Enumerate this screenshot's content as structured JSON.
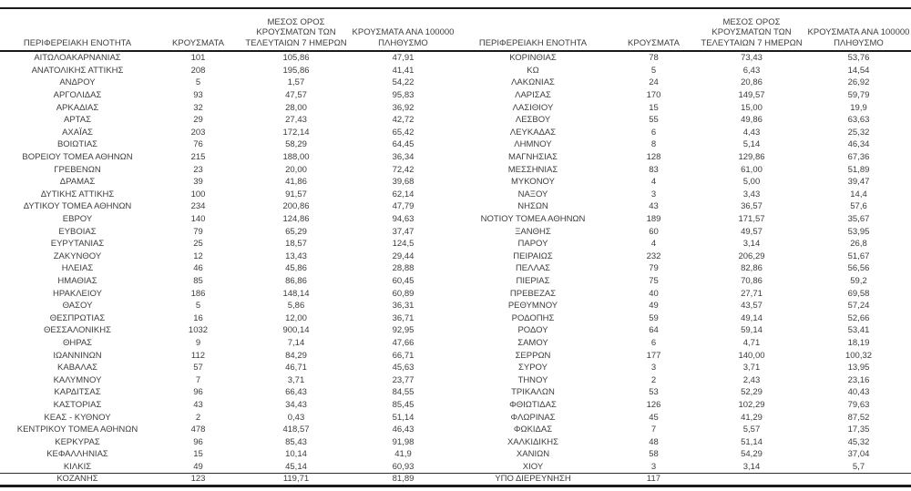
{
  "colors": {
    "text": "#3d3d3d",
    "rule": "#1a1a1a",
    "background": "#ffffff"
  },
  "columns": {
    "region": "ΠΕΡΙΦΕΡΕΙΑΚΗ ΕΝΟΤΗΤΑ",
    "cases": "ΚΡΟΥΣΜΑΤΑ",
    "avg7days": "ΜΕΣΟΣ ΟΡΟΣ\nΚΡΟΥΣΜΑΤΩΝ ΤΩΝ\nΤΕΛΕΥΤΑΙΩΝ 7 ΗΜΕΡΩΝ",
    "per100k": "ΚΡΟΥΣΜΑΤΑ ΑΝΑ 100000\nΠΛΗΘΥΣΜΟ"
  },
  "left_table": {
    "rows": [
      [
        "ΑΙΤΩΛΟΑΚΑΡΝΑΝΙΑΣ",
        "101",
        "105,86",
        "47,91"
      ],
      [
        "ΑΝΑΤΟΛΙΚΗΣ ΑΤΤΙΚΗΣ",
        "208",
        "195,86",
        "41,41"
      ],
      [
        "ΑΝΔΡΟΥ",
        "5",
        "1,57",
        "54,22"
      ],
      [
        "ΑΡΓΟΛΙΔΑΣ",
        "93",
        "47,57",
        "95,83"
      ],
      [
        "ΑΡΚΑΔΙΑΣ",
        "32",
        "28,00",
        "36,92"
      ],
      [
        "ΑΡΤΑΣ",
        "29",
        "27,43",
        "42,72"
      ],
      [
        "ΑΧΑΪΑΣ",
        "203",
        "172,14",
        "65,42"
      ],
      [
        "ΒΟΙΩΤΙΑΣ",
        "76",
        "58,29",
        "64,45"
      ],
      [
        "ΒΟΡΕΙΟΥ ΤΟΜΕΑ ΑΘΗΝΩΝ",
        "215",
        "188,00",
        "36,34"
      ],
      [
        "ΓΡΕΒΕΝΩΝ",
        "23",
        "20,00",
        "72,42"
      ],
      [
        "ΔΡΑΜΑΣ",
        "39",
        "41,86",
        "39,68"
      ],
      [
        "ΔΥΤΙΚΗΣ ΑΤΤΙΚΗΣ",
        "100",
        "91,57",
        "62,14"
      ],
      [
        "ΔΥΤΙΚΟΥ ΤΟΜΕΑ ΑΘΗΝΩΝ",
        "234",
        "200,86",
        "47,79"
      ],
      [
        "ΕΒΡΟΥ",
        "140",
        "124,86",
        "94,63"
      ],
      [
        "ΕΥΒΟΙΑΣ",
        "79",
        "65,29",
        "37,47"
      ],
      [
        "ΕΥΡΥΤΑΝΙΑΣ",
        "25",
        "18,57",
        "124,5"
      ],
      [
        "ΖΑΚΥΝΘΟΥ",
        "12",
        "13,43",
        "29,44"
      ],
      [
        "ΗΛΕΙΑΣ",
        "46",
        "45,86",
        "28,88"
      ],
      [
        "ΗΜΑΘΙΑΣ",
        "85",
        "86,86",
        "60,45"
      ],
      [
        "ΗΡΑΚΛΕΙΟΥ",
        "186",
        "148,14",
        "60,89"
      ],
      [
        "ΘΑΣΟΥ",
        "5",
        "5,86",
        "36,31"
      ],
      [
        "ΘΕΣΠΡΩΤΙΑΣ",
        "16",
        "12,00",
        "36,71"
      ],
      [
        "ΘΕΣΣΑΛΟΝΙΚΗΣ",
        "1032",
        "900,14",
        "92,95"
      ],
      [
        "ΘΗΡΑΣ",
        "9",
        "7,14",
        "47,66"
      ],
      [
        "ΙΩΑΝΝΙΝΩΝ",
        "112",
        "84,29",
        "66,71"
      ],
      [
        "ΚΑΒΑΛΑΣ",
        "57",
        "46,71",
        "45,63"
      ],
      [
        "ΚΑΛΥΜΝΟΥ",
        "7",
        "3,71",
        "23,77"
      ],
      [
        "ΚΑΡΔΙΤΣΑΣ",
        "96",
        "66,43",
        "84,55"
      ],
      [
        "ΚΑΣΤΟΡΙΑΣ",
        "43",
        "34,43",
        "85,45"
      ],
      [
        "ΚΕΑΣ - ΚΥΘΝΟΥ",
        "2",
        "0,43",
        "51,14"
      ],
      [
        "ΚΕΝΤΡΙΚΟΥ ΤΟΜΕΑ ΑΘΗΝΩΝ",
        "478",
        "418,57",
        "46,43"
      ],
      [
        "ΚΕΡΚΥΡΑΣ",
        "96",
        "85,43",
        "91,98"
      ],
      [
        "ΚΕΦΑΛΛΗΝΙΑΣ",
        "15",
        "10,14",
        "41,9"
      ],
      [
        "ΚΙΛΚΙΣ",
        "49",
        "45,14",
        "60,93"
      ],
      [
        "ΚΟΖΑΝΗΣ",
        "123",
        "119,71",
        "81,89"
      ]
    ]
  },
  "right_table": {
    "rows": [
      [
        "ΚΟΡΙΝΘΙΑΣ",
        "78",
        "73,43",
        "53,76"
      ],
      [
        "ΚΩ",
        "5",
        "6,43",
        "14,54"
      ],
      [
        "ΛΑΚΩΝΙΑΣ",
        "24",
        "20,86",
        "26,92"
      ],
      [
        "ΛΑΡΙΣΑΣ",
        "170",
        "149,57",
        "59,79"
      ],
      [
        "ΛΑΣΙΘΙΟΥ",
        "15",
        "15,00",
        "19,9"
      ],
      [
        "ΛΕΣΒΟΥ",
        "55",
        "49,86",
        "63,63"
      ],
      [
        "ΛΕΥΚΑΔΑΣ",
        "6",
        "4,43",
        "25,32"
      ],
      [
        "ΛΗΜΝΟΥ",
        "8",
        "5,14",
        "46,34"
      ],
      [
        "ΜΑΓΝΗΣΙΑΣ",
        "128",
        "129,86",
        "67,36"
      ],
      [
        "ΜΕΣΣΗΝΙΑΣ",
        "83",
        "61,00",
        "51,89"
      ],
      [
        "ΜΥΚΟΝΟΥ",
        "4",
        "5,00",
        "39,47"
      ],
      [
        "ΝΑΞΟΥ",
        "3",
        "3,43",
        "14,4"
      ],
      [
        "ΝΗΣΩΝ",
        "43",
        "36,57",
        "57,6"
      ],
      [
        "ΝΟΤΙΟΥ ΤΟΜΕΑ ΑΘΗΝΩΝ",
        "189",
        "171,57",
        "35,67"
      ],
      [
        "ΞΑΝΘΗΣ",
        "60",
        "49,57",
        "53,95"
      ],
      [
        "ΠΑΡΟΥ",
        "4",
        "3,14",
        "26,8"
      ],
      [
        "ΠΕΙΡΑΙΩΣ",
        "232",
        "206,29",
        "51,67"
      ],
      [
        "ΠΕΛΛΑΣ",
        "79",
        "82,86",
        "56,56"
      ],
      [
        "ΠΙΕΡΙΑΣ",
        "75",
        "70,86",
        "59,2"
      ],
      [
        "ΠΡΕΒΕΖΑΣ",
        "40",
        "27,71",
        "69,58"
      ],
      [
        "ΡΕΘΥΜΝΟΥ",
        "49",
        "43,57",
        "57,24"
      ],
      [
        "ΡΟΔΟΠΗΣ",
        "59",
        "49,14",
        "52,66"
      ],
      [
        "ΡΟΔΟΥ",
        "64",
        "59,14",
        "53,41"
      ],
      [
        "ΣΑΜΟΥ",
        "6",
        "4,71",
        "18,19"
      ],
      [
        "ΣΕΡΡΩΝ",
        "177",
        "140,00",
        "100,32"
      ],
      [
        "ΣΥΡΟΥ",
        "3",
        "3,71",
        "13,95"
      ],
      [
        "ΤΗΝΟΥ",
        "2",
        "2,43",
        "23,16"
      ],
      [
        "ΤΡΙΚΑΛΩΝ",
        "53",
        "52,29",
        "40,43"
      ],
      [
        "ΦΘΙΩΤΙΔΑΣ",
        "126",
        "102,29",
        "79,63"
      ],
      [
        "ΦΛΩΡΙΝΑΣ",
        "45",
        "41,29",
        "87,52"
      ],
      [
        "ΦΩΚΙΔΑΣ",
        "7",
        "5,57",
        "17,35"
      ],
      [
        "ΧΑΛΚΙΔΙΚΗΣ",
        "48",
        "51,14",
        "45,32"
      ],
      [
        "ΧΑΝΙΩΝ",
        "58",
        "54,29",
        "37,04"
      ],
      [
        "ΧΙΟΥ",
        "3",
        "3,14",
        "5,7"
      ],
      [
        "ΥΠΟ ΔΙΕΡΕΥΝΗΣΗ",
        "117",
        "",
        ""
      ]
    ]
  }
}
